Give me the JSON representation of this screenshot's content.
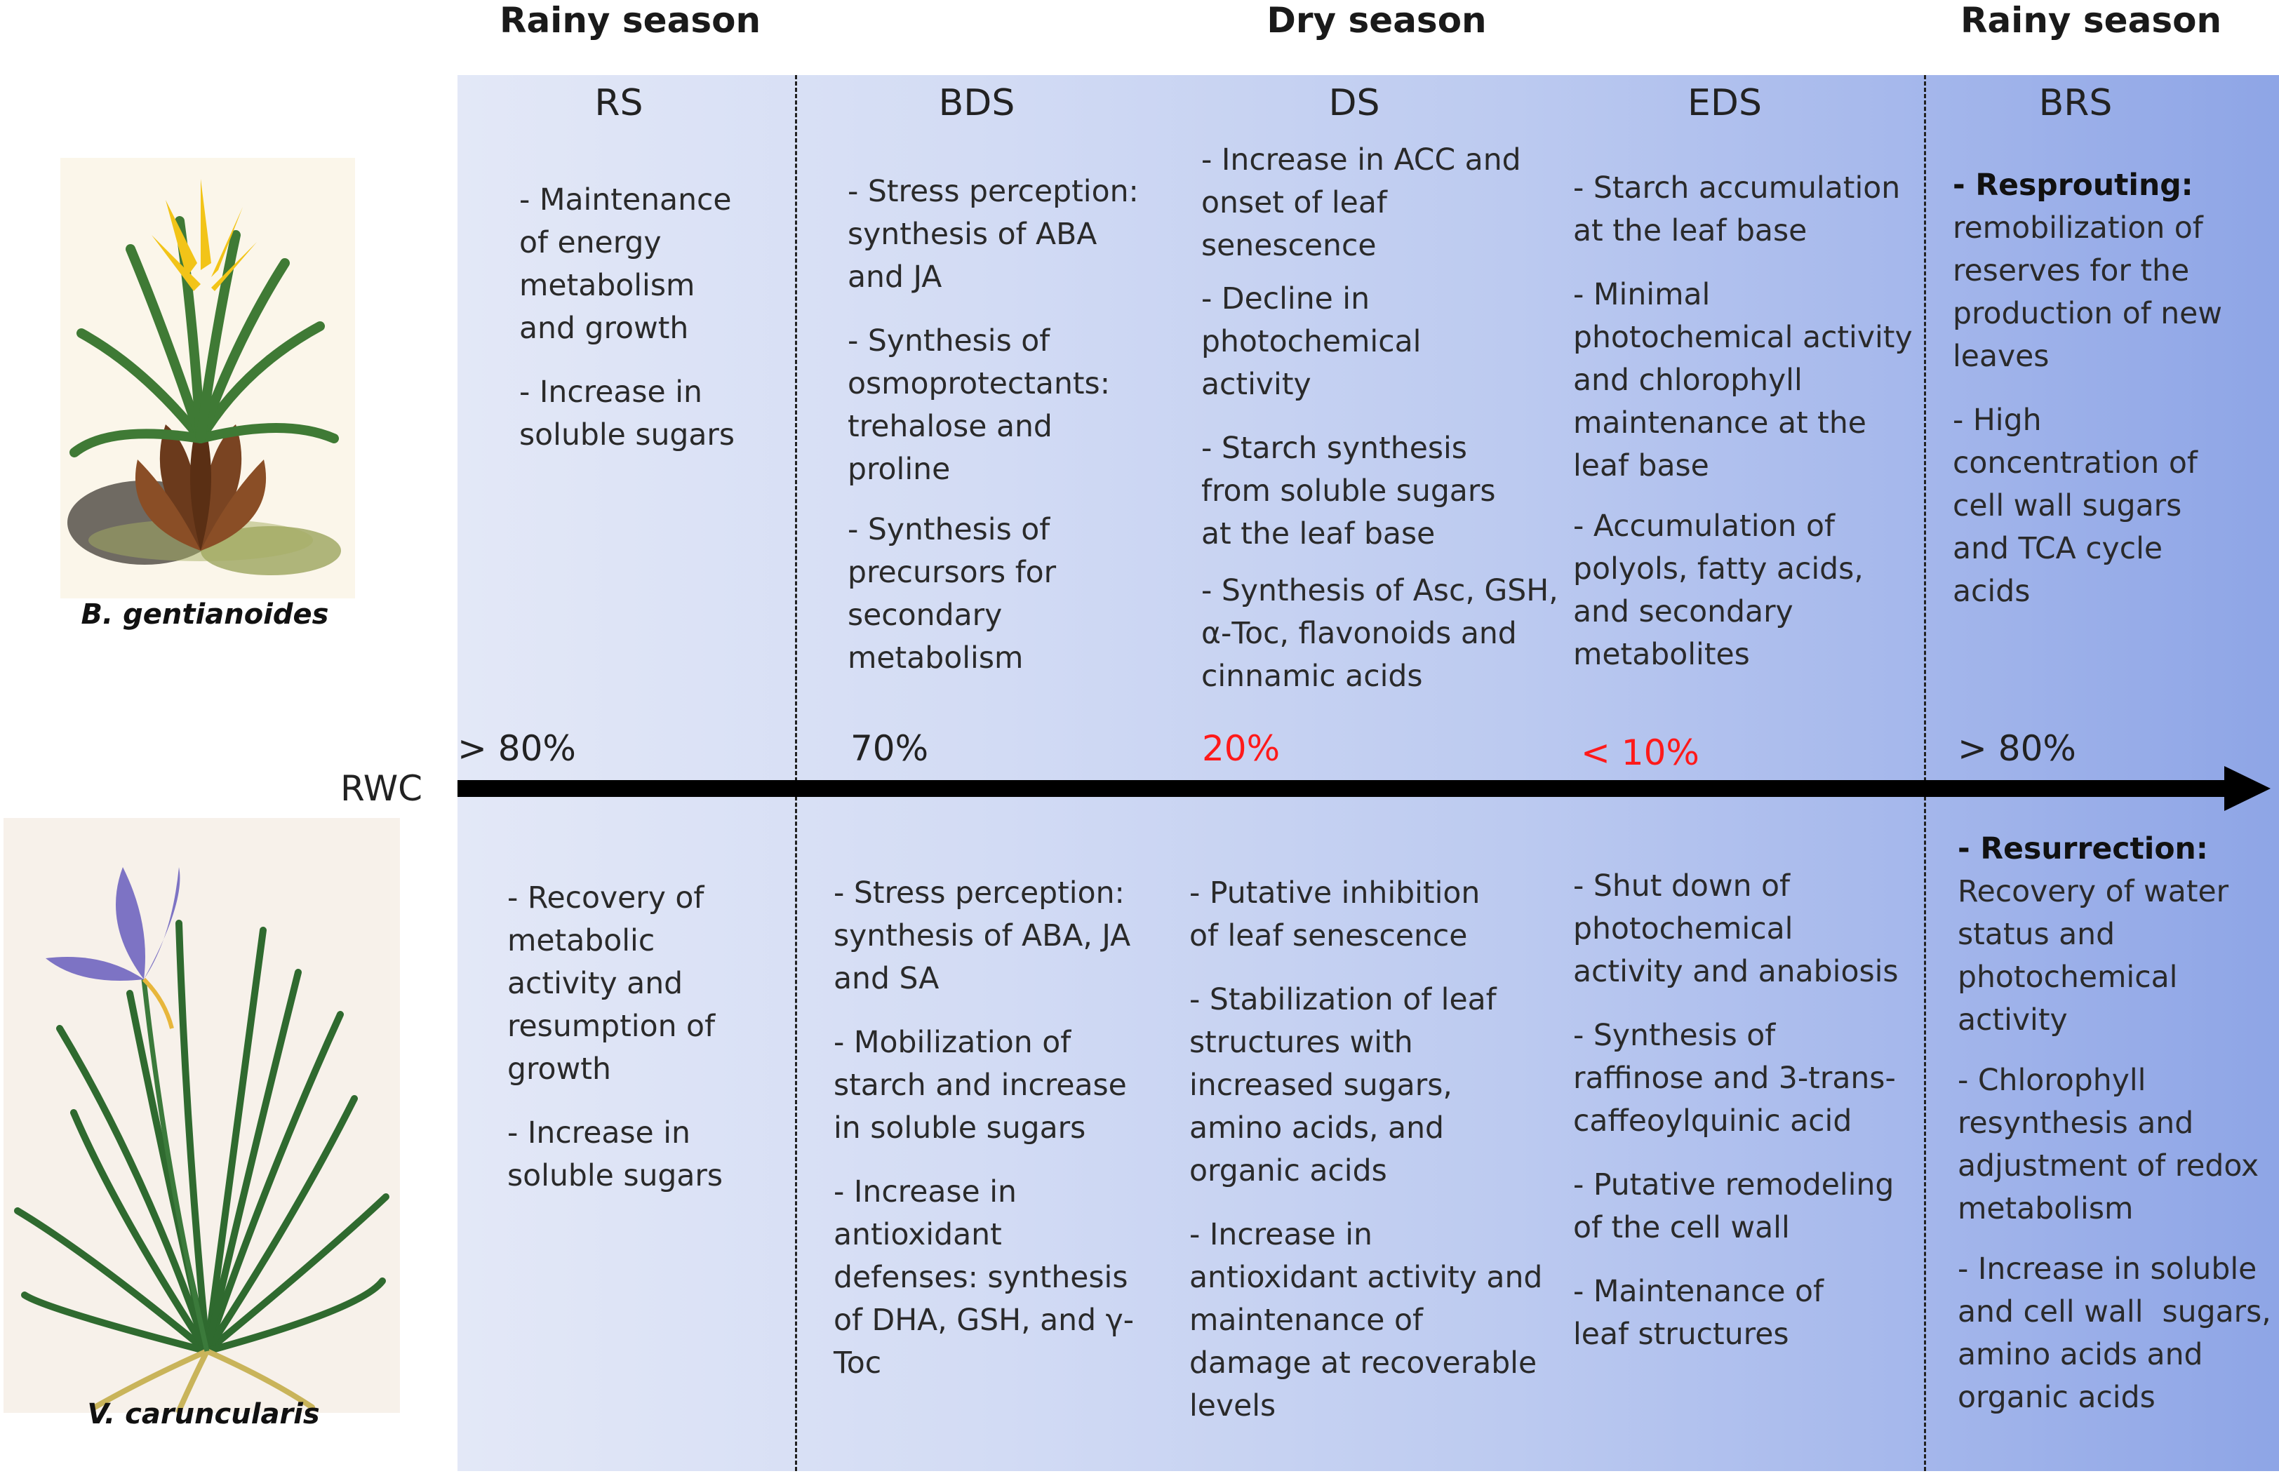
{
  "seasons": [
    "Rainy season",
    "Dry season",
    "Rainy season"
  ],
  "phases": [
    "RS",
    "BDS",
    "DS",
    "EDS",
    "BRS"
  ],
  "rwc": {
    "label": "RWC",
    "values": [
      "> 80%",
      "70%",
      "20%",
      "< 10%",
      "> 80%"
    ]
  },
  "species": {
    "top": "B. gentianoides",
    "bottom": "V. caruncularis"
  },
  "top_notes": {
    "rs": [
      "- Maintenance\nof energy\nmetabolism\nand growth",
      "- Increase in\nsoluble sugars"
    ],
    "bds": [
      "- Stress perception:\nsynthesis of ABA\nand JA",
      "- Synthesis of\nosmoprotectants:\ntrehalose and\nproline",
      "- Synthesis of\nprecursors for\nsecondary\nmetabolism"
    ],
    "ds": [
      "- Increase in ACC and\nonset of leaf\nsenescence",
      "- Decline in\nphotochemical\nactivity",
      "- Starch synthesis\nfrom soluble sugars\nat the leaf base",
      "- Synthesis of Asc, GSH,\nα-Toc, flavonoids and\ncinnamic acids"
    ],
    "eds": [
      "- Starch accumulation\nat the leaf base",
      "- Minimal\nphotochemical activity\nand chlorophyll\nmaintenance at the\nleaf base",
      "- Accumulation of\npolyols, fatty acids,\nand secondary\nmetabolites"
    ],
    "brs_title": "- Resprouting:",
    "brs": [
      "remobilization of\nreserves for the\nproduction of new\nleaves",
      "- High\nconcentration of\ncell wall sugars\nand TCA cycle\nacids"
    ]
  },
  "bottom_notes": {
    "rs": [
      "- Recovery of\nmetabolic\nactivity and\nresumption of\ngrowth",
      "- Increase in\nsoluble sugars"
    ],
    "bds": [
      "- Stress perception:\nsynthesis of ABA, JA\nand SA",
      "- Mobilization of\nstarch and increase\nin soluble sugars",
      "- Increase in\nantioxidant\ndefenses: synthesis\nof DHA, GSH, and γ-\nToc"
    ],
    "ds": [
      "- Putative inhibition\nof leaf senescence",
      "- Stabilization of leaf\nstructures with\nincreased sugars,\namino acids, and\norganic acids",
      "- Increase in\nantioxidant activity and\nmaintenance of\ndamage at recoverable\nlevels"
    ],
    "eds": [
      "- Shut down of\nphotochemical\nactivity and anabiosis",
      "- Synthesis of\nraffinose and 3-trans-\ncaffeoylquinic acid",
      "- Putative remodeling\nof the cell wall",
      "- Maintenance of\nleaf structures"
    ],
    "brs_title": "- Resurrection:",
    "brs": [
      "Recovery of water\nstatus and\nphotochemical\nactivity",
      "- Chlorophyll\nresynthesis and\nadjustment of redox\nmetabolism",
      "- Increase in soluble\nand cell wall  sugars,\namino acids and\norganic acids"
    ]
  },
  "colors": {
    "panel_left": "#e3e8f7",
    "panel_right": "#8ea5e6",
    "low_rwc": "#ff1a1a",
    "arrow": "#000000"
  }
}
